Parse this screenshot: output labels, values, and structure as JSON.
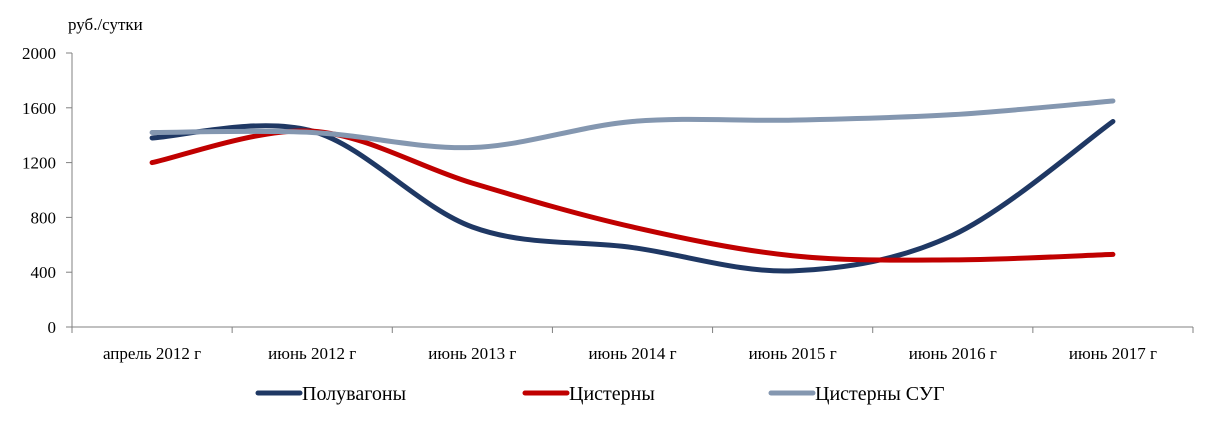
{
  "chart_data": {
    "type": "line",
    "unit_label": "руб./сутки",
    "title": "",
    "xlabel": "",
    "ylabel": "",
    "categories": [
      "апрель 2012 г",
      "июнь 2012 г",
      "июнь 2013 г",
      "июнь 2014 г",
      "июнь 2015 г",
      "июнь 2016 г",
      "июнь 2017 г"
    ],
    "yticks": [
      0,
      400,
      800,
      1200,
      1600,
      2000
    ],
    "ylim": [
      0,
      2000
    ],
    "grid": false,
    "smooth": true,
    "legend_position": "bottom",
    "series": [
      {
        "name": "Полувагоны",
        "color": "#1f3864",
        "values": [
          1380,
          1430,
          730,
          580,
          410,
          670,
          1500
        ]
      },
      {
        "name": "Цистерны",
        "color": "#c00000",
        "values": [
          1200,
          1430,
          1050,
          730,
          520,
          490,
          530
        ]
      },
      {
        "name": "Цистерны СУГ",
        "color": "#8497b0",
        "values": [
          1420,
          1420,
          1310,
          1500,
          1510,
          1550,
          1650
        ]
      }
    ]
  }
}
